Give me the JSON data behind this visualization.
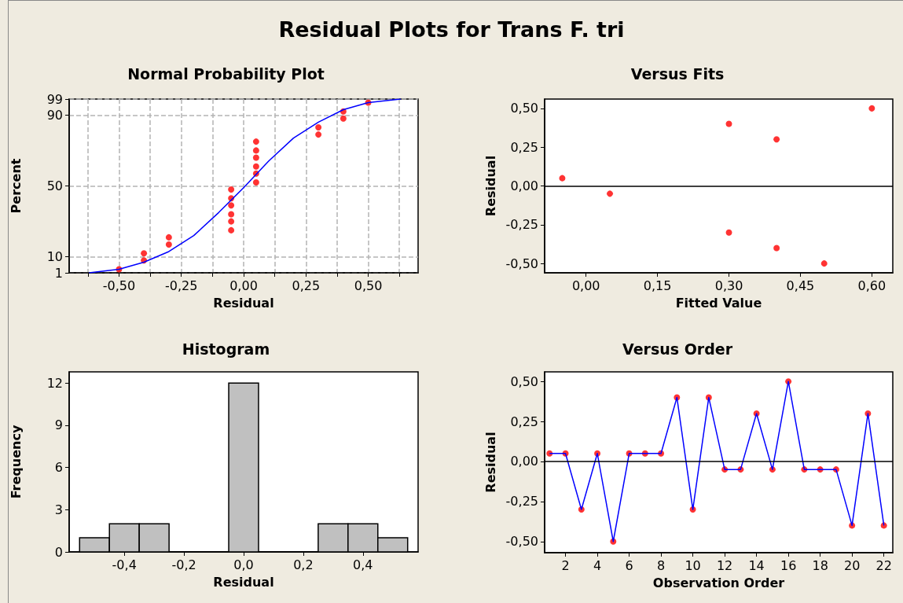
{
  "chart_data": [
    {
      "type": "scatter",
      "title": "Normal Probability Plot",
      "xlabel": "Residual",
      "ylabel": "Percent",
      "annotations": [
        "Residual Plots for Trans F. tri"
      ],
      "grid": true,
      "xlim": [
        -0.7,
        0.7
      ],
      "xticks": [
        {
          "value": -0.625,
          "label": null
        },
        {
          "value": -0.5,
          "label": "-0,50"
        },
        {
          "value": -0.375,
          "label": null
        },
        {
          "value": -0.25,
          "label": "-0,25"
        },
        {
          "value": -0.125,
          "label": null
        },
        {
          "value": 0,
          "label": "0,00"
        },
        {
          "value": 0.125,
          "label": null
        },
        {
          "value": 0.25,
          "label": "0,25"
        },
        {
          "value": 0.375,
          "label": null
        },
        {
          "value": 0.5,
          "label": "0,50"
        },
        {
          "value": 0.625,
          "label": null
        }
      ],
      "ylim": [
        1,
        99
      ],
      "yticks": [
        1,
        10,
        50,
        90,
        99
      ],
      "series": [
        {
          "marker": "circle",
          "color": "#ff0000",
          "x": [
            -0.5,
            -0.4,
            -0.4,
            -0.3,
            -0.3,
            -0.05,
            -0.05,
            -0.05,
            -0.05,
            -0.05,
            -0.05,
            0.05,
            0.05,
            0.05,
            0.05,
            0.05,
            0.05,
            0.3,
            0.3,
            0.4,
            0.4,
            0.5
          ],
          "values": [
            3,
            8,
            12,
            17,
            21,
            25,
            30,
            34,
            39,
            43,
            48,
            52,
            57,
            61,
            66,
            70,
            75,
            79,
            83,
            88,
            92,
            97
          ]
        },
        {
          "type": "line",
          "marker": "none",
          "color": "#0000ff",
          "x": [
            -0.62,
            -0.5,
            -0.4,
            -0.3,
            -0.2,
            -0.1,
            0,
            0.1,
            0.2,
            0.3,
            0.4,
            0.5,
            0.63
          ],
          "values": [
            1,
            3,
            7,
            13,
            22,
            35,
            49,
            64,
            77,
            86,
            93,
            97,
            99
          ]
        }
      ]
    },
    {
      "type": "scatter",
      "title": "Versus Fits",
      "xlabel": "Fitted Value",
      "ylabel": "Residual",
      "marker": "circle",
      "xlim": [
        -0.087,
        0.644
      ],
      "xticks": [
        {
          "value": 0,
          "label": "0,00"
        },
        {
          "value": 0.15,
          "label": "0,15"
        },
        {
          "value": 0.3,
          "label": "0,30"
        },
        {
          "value": 0.45,
          "label": "0,45"
        },
        {
          "value": 0.6,
          "label": "0,60"
        }
      ],
      "ylim": [
        -0.56,
        0.56
      ],
      "yticks": [
        {
          "value": -0.5,
          "label": "-0,50"
        },
        {
          "value": -0.25,
          "label": "-0,25"
        },
        {
          "value": 0,
          "label": "0,00"
        },
        {
          "value": 0.25,
          "label": "0,25"
        },
        {
          "value": 0.5,
          "label": "0,50"
        }
      ],
      "ref_lines": [
        {
          "axis": "y",
          "value": 0,
          "label": null,
          "color": "#000000"
        }
      ],
      "series": [
        {
          "color": "#ff0000",
          "x": [
            -0.05,
            0.05,
            0.3,
            0.3,
            0.4,
            0.4,
            0.5,
            0.6
          ],
          "values": [
            0.05,
            -0.05,
            0.4,
            -0.3,
            0.3,
            -0.4,
            -0.5,
            0.5
          ]
        }
      ]
    },
    {
      "type": "histogram",
      "title": "Histogram",
      "xlabel": "Residual",
      "ylabel": "Frequency",
      "color": "#c0c0c0",
      "bins": [
        -0.55,
        -0.45,
        -0.35,
        -0.25,
        -0.15,
        -0.05,
        0.05,
        0.15,
        0.25,
        0.35,
        0.45,
        0.55
      ],
      "values": [
        1,
        2,
        2,
        0,
        0,
        12,
        0,
        0,
        2,
        2,
        1
      ],
      "xlim": [
        -0.585,
        0.585
      ],
      "xticks": [
        {
          "value": -0.4,
          "label": "-0,4"
        },
        {
          "value": -0.2,
          "label": "-0,2"
        },
        {
          "value": 0,
          "label": "0,0"
        },
        {
          "value": 0.2,
          "label": "0,2"
        },
        {
          "value": 0.4,
          "label": "0,4"
        }
      ],
      "ylim": [
        0,
        12.8
      ],
      "yticks": [
        0,
        3,
        6,
        9,
        12
      ]
    },
    {
      "type": "line",
      "title": "Versus Order",
      "xlabel": "Observation Order",
      "ylabel": "Residual",
      "xlim": [
        0.69,
        22.56
      ],
      "xticks": [
        2,
        4,
        6,
        8,
        10,
        12,
        14,
        16,
        18,
        20,
        22
      ],
      "ylim": [
        -0.57,
        0.56
      ],
      "yticks": [
        {
          "value": -0.5,
          "label": "-0,50"
        },
        {
          "value": -0.25,
          "label": "-0,25"
        },
        {
          "value": 0,
          "label": "0,00"
        },
        {
          "value": 0.25,
          "label": "0,25"
        },
        {
          "value": 0.5,
          "label": "0,50"
        }
      ],
      "ref_lines": [
        {
          "axis": "y",
          "value": 0,
          "label": null,
          "color": "#000000"
        }
      ],
      "x": [
        1,
        2,
        3,
        4,
        5,
        6,
        7,
        8,
        9,
        10,
        11,
        12,
        13,
        14,
        15,
        16,
        17,
        18,
        19,
        20,
        21,
        22
      ],
      "series": [
        {
          "marker": "none",
          "color": "#0000ff",
          "values": [
            0.05,
            0.05,
            -0.3,
            0.05,
            -0.5,
            0.05,
            0.05,
            0.05,
            0.4,
            -0.3,
            0.4,
            -0.05,
            -0.05,
            0.3,
            -0.05,
            0.5,
            -0.05,
            -0.05,
            -0.05,
            -0.4,
            0.3,
            -0.4
          ]
        },
        {
          "type": "scatter",
          "marker": "circle",
          "color": "#ff0000",
          "values": [
            0.05,
            0.05,
            -0.3,
            0.05,
            -0.5,
            0.05,
            0.05,
            0.05,
            0.4,
            -0.3,
            0.4,
            -0.05,
            -0.05,
            0.3,
            -0.05,
            0.5,
            -0.05,
            -0.05,
            -0.05,
            -0.4,
            0.3,
            -0.4
          ]
        }
      ]
    }
  ]
}
